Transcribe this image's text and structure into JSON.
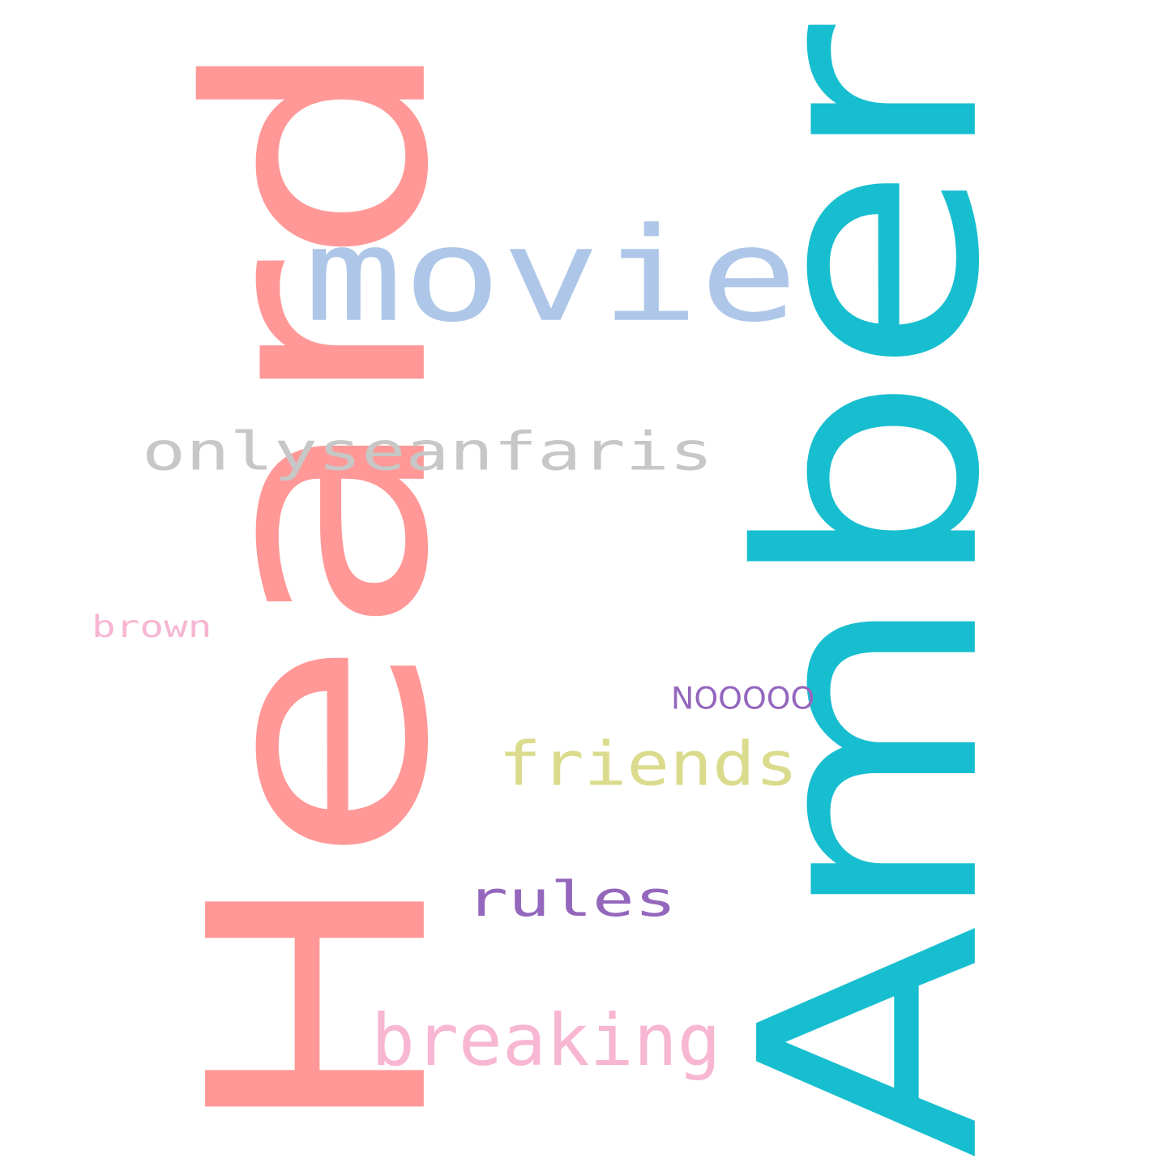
{
  "words": {
    "amber": "Amber",
    "heard": "Heard",
    "movie": "movie",
    "onlyseanfaris": "onlyseanfaris",
    "friends": "friends",
    "rules": "rules",
    "breaking": "breaking",
    "brown": "brown",
    "nooooo": "NOOOOO"
  },
  "colors": {
    "amber": "#17becf",
    "heard": "#ff9896",
    "movie": "#aec7e8",
    "onlyseanfaris": "#c7c7c7",
    "friends": "#dbdb8d",
    "rules": "#9467bd",
    "breaking": "#f7b6d2",
    "brown": "#f7b6d2",
    "nooooo": "#9467bd"
  }
}
